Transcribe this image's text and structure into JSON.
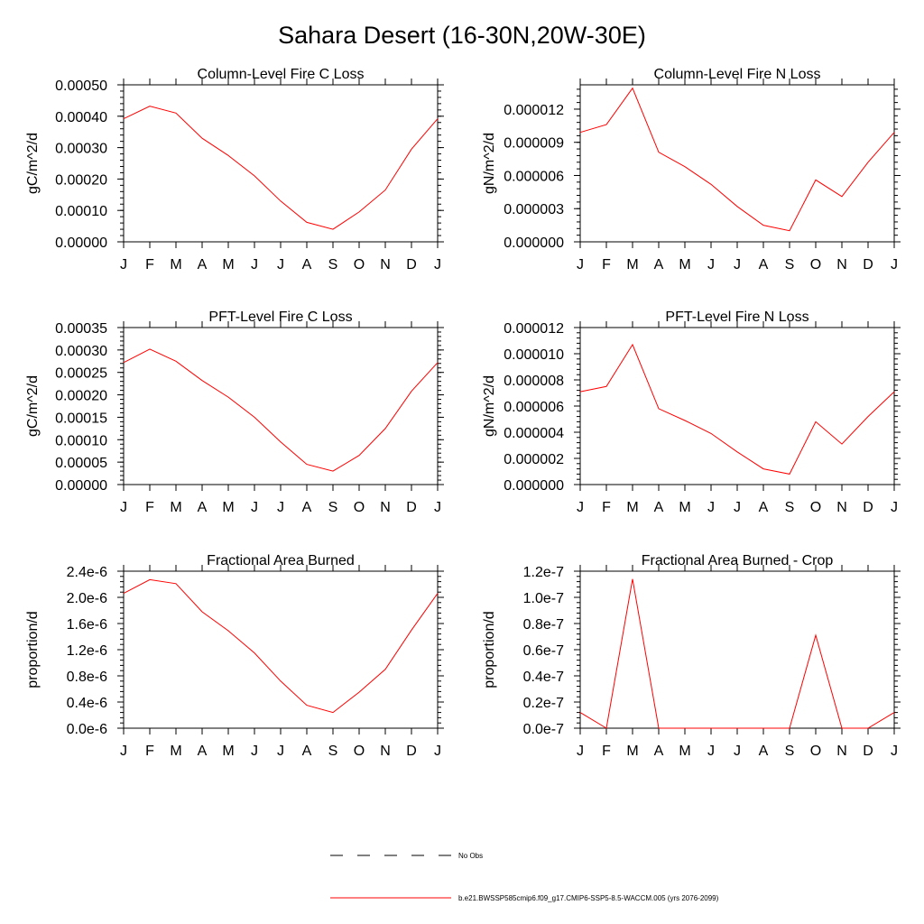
{
  "title": "Sahara Desert (16-30N,20W-30E)",
  "chart_data": [
    {
      "type": "line",
      "title": "Column-Level Fire C Loss",
      "ylabel": "gC/m^2/d",
      "xlabel": "",
      "categories": [
        "J",
        "F",
        "M",
        "A",
        "M",
        "J",
        "J",
        "A",
        "S",
        "O",
        "N",
        "D",
        "J"
      ],
      "ylim": [
        0,
        0.0005
      ],
      "yticks": [
        "0.00000",
        "0.00010",
        "0.00020",
        "0.00030",
        "0.00040",
        "0.00050"
      ],
      "ytick_values": [
        0,
        0.0001,
        0.0002,
        0.0003,
        0.0004,
        0.0005
      ],
      "series": [
        {
          "name": "b.e21.BWSSP585cmip6.f09_g17.CMIP6-SSP5-8.5-WACCM.005 (yrs 2076-2099)",
          "color": "#ff0000",
          "values": [
            0.000392,
            0.000432,
            0.00041,
            0.00033,
            0.000275,
            0.00021,
            0.00013,
            6.2e-05,
            4e-05,
            9.5e-05,
            0.000165,
            0.000295,
            0.000392
          ]
        }
      ]
    },
    {
      "type": "line",
      "title": "Column-Level Fire N Loss",
      "ylabel": "gN/m^2/d",
      "xlabel": "",
      "categories": [
        "J",
        "F",
        "M",
        "A",
        "M",
        "J",
        "J",
        "A",
        "S",
        "O",
        "N",
        "D",
        "J"
      ],
      "ylim": [
        0,
        1.42e-05
      ],
      "yticks": [
        "0.000000",
        "0.000003",
        "0.000006",
        "0.000009",
        "0.000012"
      ],
      "ytick_values": [
        0,
        3e-06,
        6e-06,
        9e-06,
        1.2e-05
      ],
      "series": [
        {
          "name": "b.e21.BWSSP585cmip6.f09_g17.CMIP6-SSP5-8.5-WACCM.005 (yrs 2076-2099)",
          "color": "#ff0000",
          "values": [
            9.9e-06,
            1.06e-05,
            1.39e-05,
            8.1e-06,
            6.8e-06,
            5.2e-06,
            3.2e-06,
            1.5e-06,
            1e-06,
            5.6e-06,
            4.1e-06,
            7.2e-06,
            9.9e-06
          ]
        }
      ]
    },
    {
      "type": "line",
      "title": "PFT-Level Fire C Loss",
      "ylabel": "gC/m^2/d",
      "xlabel": "",
      "categories": [
        "J",
        "F",
        "M",
        "A",
        "M",
        "J",
        "J",
        "A",
        "S",
        "O",
        "N",
        "D",
        "J"
      ],
      "ylim": [
        0,
        0.00035
      ],
      "yticks": [
        "0.00000",
        "0.00005",
        "0.00010",
        "0.00015",
        "0.00020",
        "0.00025",
        "0.00030",
        "0.00035"
      ],
      "ytick_values": [
        0,
        5e-05,
        0.0001,
        0.00015,
        0.0002,
        0.00025,
        0.0003,
        0.00035
      ],
      "series": [
        {
          "name": "b.e21.BWSSP585cmip6.f09_g17.CMIP6-SSP5-8.5-WACCM.005 (yrs 2076-2099)",
          "color": "#ff0000",
          "values": [
            0.000272,
            0.000302,
            0.000275,
            0.000232,
            0.000195,
            0.00015,
            9.5e-05,
            4.5e-05,
            3e-05,
            6.5e-05,
            0.000125,
            0.000208,
            0.000272
          ]
        }
      ]
    },
    {
      "type": "line",
      "title": "PFT-Level Fire N Loss",
      "ylabel": "gN/m^2/d",
      "xlabel": "",
      "categories": [
        "J",
        "F",
        "M",
        "A",
        "M",
        "J",
        "J",
        "A",
        "S",
        "O",
        "N",
        "D",
        "J"
      ],
      "ylim": [
        0,
        1.2e-05
      ],
      "yticks": [
        "0.000000",
        "0.000002",
        "0.000004",
        "0.000006",
        "0.000008",
        "0.000010",
        "0.000012"
      ],
      "ytick_values": [
        0,
        2e-06,
        4e-06,
        6e-06,
        8e-06,
        1e-05,
        1.2e-05
      ],
      "series": [
        {
          "name": "b.e21.BWSSP585cmip6.f09_g17.CMIP6-SSP5-8.5-WACCM.005 (yrs 2076-2099)",
          "color": "#ff0000",
          "values": [
            7.1e-06,
            7.5e-06,
            1.07e-05,
            5.8e-06,
            4.9e-06,
            3.9e-06,
            2.5e-06,
            1.2e-06,
            8e-07,
            4.8e-06,
            3.1e-06,
            5.2e-06,
            7.1e-06
          ]
        }
      ]
    },
    {
      "type": "line",
      "title": "Fractional Area Burned",
      "ylabel": "proportion/d",
      "xlabel": "",
      "categories": [
        "J",
        "F",
        "M",
        "A",
        "M",
        "J",
        "J",
        "A",
        "S",
        "O",
        "N",
        "D",
        "J"
      ],
      "ylim": [
        0,
        2.4e-06
      ],
      "yticks": [
        "0.0e-6",
        "0.4e-6",
        "0.8e-6",
        "1.2e-6",
        "1.6e-6",
        "2.0e-6",
        "2.4e-6"
      ],
      "ytick_values": [
        0,
        4e-07,
        8e-07,
        1.2e-06,
        1.6e-06,
        2e-06,
        2.4e-06
      ],
      "series": [
        {
          "name": "b.e21.BWSSP585cmip6.f09_g17.CMIP6-SSP5-8.5-WACCM.005 (yrs 2076-2099)",
          "color": "#ff0000",
          "values": [
            2.06e-06,
            2.27e-06,
            2.21e-06,
            1.78e-06,
            1.49e-06,
            1.15e-06,
            7.2e-07,
            3.5e-07,
            2.4e-07,
            5.5e-07,
            9e-07,
            1.5e-06,
            2.06e-06
          ]
        }
      ]
    },
    {
      "type": "line",
      "title": "Fractional Area Burned - Crop",
      "ylabel": "proportion/d",
      "xlabel": "",
      "categories": [
        "J",
        "F",
        "M",
        "A",
        "M",
        "J",
        "J",
        "A",
        "S",
        "O",
        "N",
        "D",
        "J"
      ],
      "ylim": [
        0,
        1.2e-07
      ],
      "yticks": [
        "0.0e-7",
        "0.2e-7",
        "0.4e-7",
        "0.6e-7",
        "0.8e-7",
        "1.0e-7",
        "1.2e-7"
      ],
      "ytick_values": [
        0,
        2e-08,
        4e-08,
        6e-08,
        8e-08,
        1e-07,
        1.2e-07
      ],
      "series": [
        {
          "name": "b.e21.BWSSP585cmip6.f09_g17.CMIP6-SSP5-8.5-WACCM.005 (yrs 2076-2099)",
          "color": "#ff0000",
          "values": [
            1.2e-08,
            0,
            1.14e-07,
            0,
            0,
            0,
            0,
            0,
            0,
            7.1e-08,
            0,
            0,
            1.2e-08
          ]
        }
      ]
    }
  ],
  "legend": {
    "placement": "bottom-center",
    "items": [
      {
        "label": "No Obs",
        "style": "dashed",
        "color": "#000000"
      },
      {
        "label": "b.e21.BWSSP585cmip6.f09_g17.CMIP6-SSP5-8.5-WACCM.005 (yrs 2076-2099)",
        "style": "solid",
        "color": "#ff0000"
      }
    ]
  }
}
